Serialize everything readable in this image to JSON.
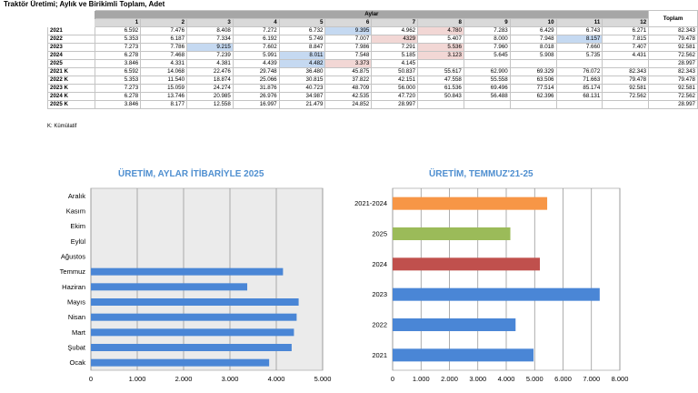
{
  "title": "Traktör Üretimi; Aylık ve Birikimli Toplam, Adet",
  "table": {
    "group_header": "Aylar",
    "total_header": "Toplam",
    "months": [
      "1",
      "2",
      "3",
      "4",
      "5",
      "6",
      "7",
      "8",
      "9",
      "10",
      "11",
      "12"
    ],
    "rows": [
      {
        "label": "2021",
        "values": [
          "6.592",
          "7.476",
          "8.408",
          "7.272",
          "6.732",
          "9.395",
          "4.962",
          "4.780",
          "7.283",
          "6.429",
          "6.743",
          "6.271"
        ],
        "total": "82.343"
      },
      {
        "label": "2022",
        "values": [
          "5.353",
          "6.187",
          "7.334",
          "6.192",
          "5.749",
          "7.007",
          "4329",
          "5.407",
          "8.000",
          "7.948",
          "8.157",
          "7.815"
        ],
        "total": "79.478"
      },
      {
        "label": "2023",
        "values": [
          "7.273",
          "7.786",
          "9.215",
          "7.602",
          "8.847",
          "7.986",
          "7.291",
          "5.536",
          "7.960",
          "8.018",
          "7.660",
          "7.407"
        ],
        "total": "92.581"
      },
      {
        "label": "2024",
        "values": [
          "6.278",
          "7.468",
          "7.239",
          "5.991",
          "8.011",
          "7.548",
          "5.185",
          "3.123",
          "5.645",
          "5.908",
          "5.735",
          "4.431"
        ],
        "total": "72.562"
      },
      {
        "label": "2025",
        "values": [
          "3.846",
          "4.331",
          "4.381",
          "4.439",
          "4.482",
          "3.373",
          "4.145",
          "",
          "",
          "",
          "",
          ""
        ],
        "total": "28.997"
      },
      {
        "label": "2021 K",
        "values": [
          "6.592",
          "14.068",
          "22.476",
          "29.748",
          "36.480",
          "45.875",
          "50.837",
          "55.617",
          "62.900",
          "69.329",
          "76.072",
          "82.343"
        ],
        "total": "82.343"
      },
      {
        "label": "2022 K",
        "values": [
          "5.353",
          "11.540",
          "18.874",
          "25.066",
          "30.815",
          "37.822",
          "42.151",
          "47.558",
          "55.558",
          "63.506",
          "71.663",
          "79.478"
        ],
        "total": "79.478"
      },
      {
        "label": "2023 K",
        "values": [
          "7.273",
          "15.059",
          "24.274",
          "31.876",
          "40.723",
          "48.709",
          "56.000",
          "61.536",
          "69.496",
          "77.514",
          "85.174",
          "92.581"
        ],
        "total": "92.581"
      },
      {
        "label": "2024 K",
        "values": [
          "6.278",
          "13.746",
          "20.985",
          "26.976",
          "34.987",
          "42.535",
          "47.720",
          "50.843",
          "56.488",
          "62.396",
          "68.131",
          "72.562"
        ],
        "total": "72.562"
      },
      {
        "label": "2025 K",
        "values": [
          "3.846",
          "8.177",
          "12.558",
          "16.997",
          "21.479",
          "24.852",
          "28.997",
          "",
          "",
          "",
          "",
          ""
        ],
        "total": "28.997"
      }
    ],
    "note": "K: Kümülatif"
  },
  "chart_data": [
    {
      "type": "bar",
      "orientation": "horizontal",
      "title": "ÜRETİM, AYLAR İTİBARİYLE 2025",
      "categories": [
        "Ocak",
        "Şubat",
        "Mart",
        "Nisan",
        "Mayıs",
        "Haziran",
        "Temmuz",
        "Ağustos",
        "Eylül",
        "Ekim",
        "Kasım",
        "Aralık"
      ],
      "values": [
        3846,
        4331,
        4381,
        4439,
        4482,
        3373,
        4145,
        null,
        null,
        null,
        null,
        null
      ],
      "xlim": [
        0,
        5000
      ],
      "ticks": [
        0,
        1000,
        2000,
        3000,
        4000,
        5000
      ],
      "tick_labels": [
        "0",
        "1.000",
        "2.000",
        "3.000",
        "4.000",
        "5.000"
      ],
      "bar_color": "#4a86d6",
      "grid": true
    },
    {
      "type": "bar",
      "orientation": "horizontal",
      "title": "ÜRETİM, TEMMUZ'21-25",
      "categories": [
        "2021",
        "2022",
        "2023",
        "2024",
        "2025",
        "2021-2024"
      ],
      "values": [
        4962,
        4329,
        7291,
        5185,
        4145,
        5442
      ],
      "colors": [
        "#4a86d6",
        "#4a86d6",
        "#4a86d6",
        "#c0504d",
        "#9bbb59",
        "#f79646"
      ],
      "xlim": [
        0,
        8000
      ],
      "ticks": [
        0,
        1000,
        2000,
        3000,
        4000,
        5000,
        6000,
        7000,
        8000
      ],
      "tick_labels": [
        "0",
        "1.000",
        "2.000",
        "3.000",
        "4.000",
        "5.000",
        "6.000",
        "7.000",
        "8.000"
      ],
      "grid": true
    }
  ]
}
